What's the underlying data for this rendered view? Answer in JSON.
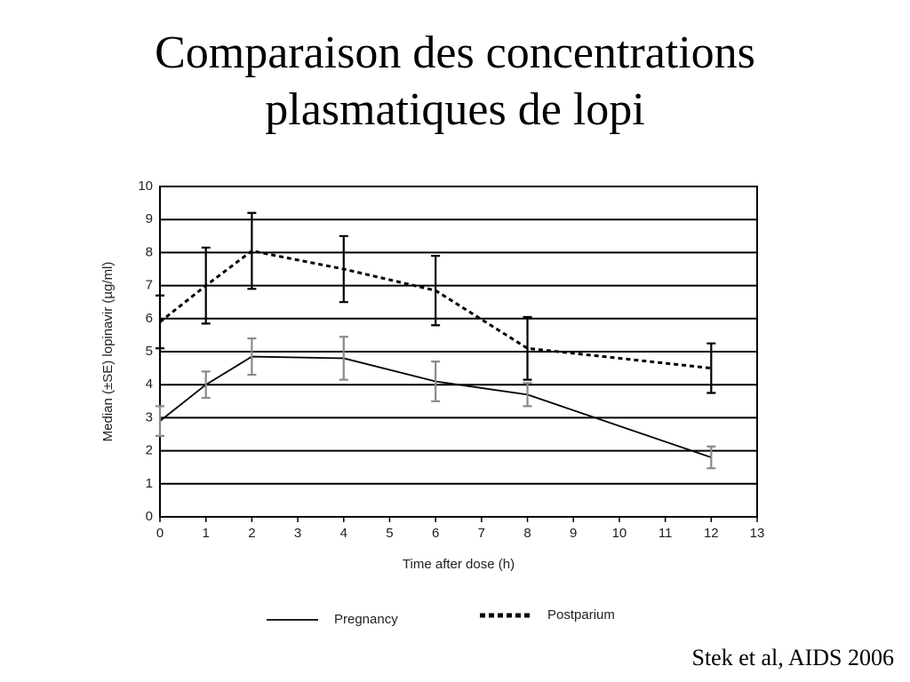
{
  "chart_data": {
    "type": "line",
    "title": "Comparaison des concentrations plasmatiques de lopi",
    "x_label": "Time after dose (h)",
    "y_label": "Median (±SE) lopinavir (µg/ml)",
    "source": "Stek et al, AIDS 2006",
    "x": [
      0,
      1,
      2,
      4,
      6,
      8,
      12
    ],
    "series": [
      {
        "name": "Pregnancy",
        "color": "#000000",
        "error_color": "#8a8a8a",
        "dash": "solid",
        "values": [
          2.9,
          4.0,
          4.85,
          4.8,
          4.1,
          3.7,
          1.8
        ],
        "errors": [
          0.45,
          0.4,
          0.55,
          0.65,
          0.6,
          0.35,
          0.33
        ]
      },
      {
        "name": "Postparium",
        "color": "#000000",
        "error_color": "#000000",
        "dash": "dotted",
        "values": [
          5.9,
          7.0,
          8.05,
          7.5,
          6.85,
          5.1,
          4.5
        ],
        "errors": [
          0.8,
          1.15,
          1.15,
          1.0,
          1.05,
          0.95,
          0.75
        ]
      }
    ],
    "xlim": [
      0,
      13
    ],
    "xticks": [
      0,
      1,
      2,
      3,
      4,
      5,
      6,
      7,
      8,
      9,
      10,
      11,
      12,
      13
    ],
    "ylim": [
      0,
      10
    ],
    "yticks": [
      0,
      1,
      2,
      3,
      4,
      5,
      6,
      7,
      8,
      9,
      10
    ],
    "grid": true,
    "legend": "bottom"
  }
}
